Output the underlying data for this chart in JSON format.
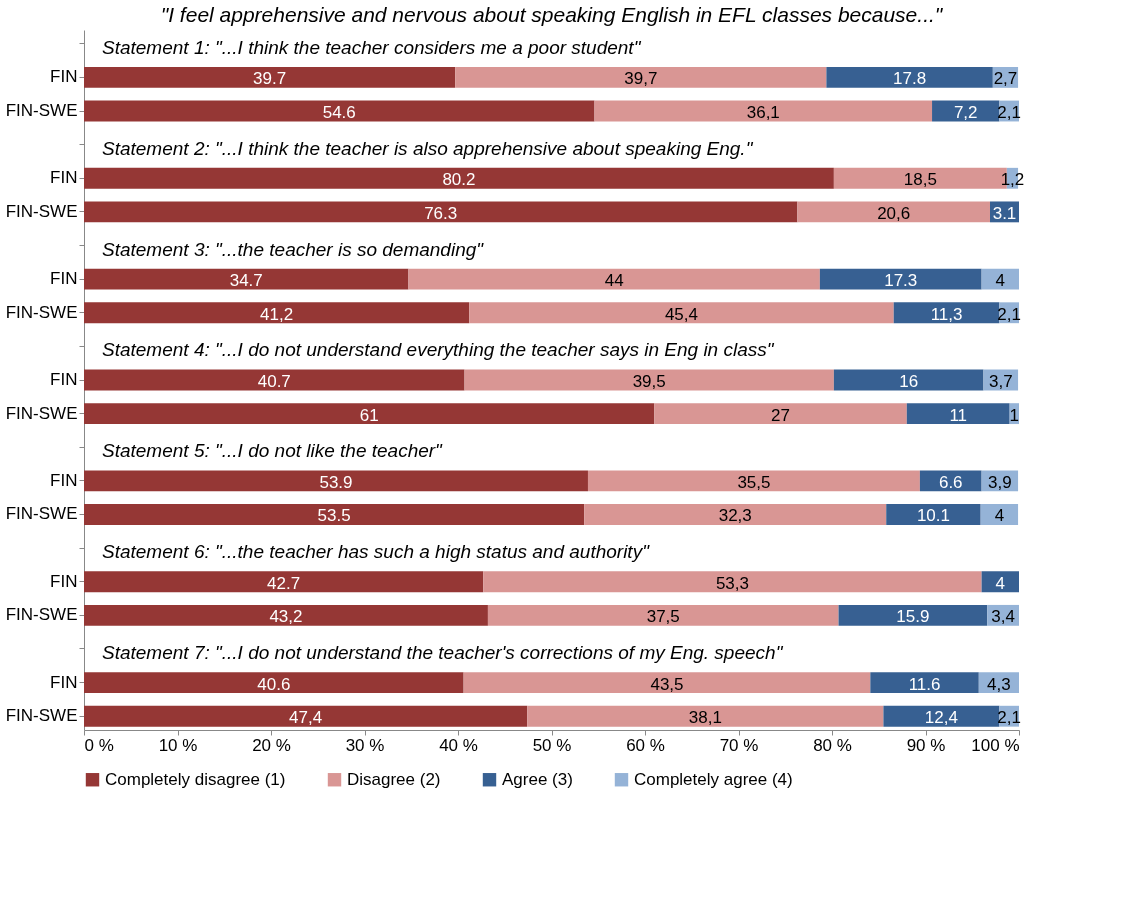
{
  "chart_data": {
    "type": "bar",
    "orientation": "horizontal",
    "stacked": true,
    "title": "\"I feel apprehensive and nervous about speaking English in EFL classes because...\"",
    "categories": [
      "FIN",
      "FIN-SWE",
      "FIN",
      "FIN-SWE",
      "FIN",
      "FIN-SWE",
      "FIN",
      "FIN-SWE",
      "FIN",
      "FIN-SWE",
      "FIN",
      "FIN-SWE",
      "FIN",
      "FIN-SWE"
    ],
    "series": [
      {
        "name": "Completely disagree (1)",
        "color": "#953735",
        "values": [
          39.7,
          54.6,
          80.2,
          76.3,
          34.7,
          41.2,
          40.7,
          61,
          53.9,
          53.5,
          42.7,
          43.2,
          40.6,
          47.4
        ],
        "value_labels": [
          "39.7",
          "54.6",
          "80.2",
          "76.3",
          "34.7",
          "41,2",
          "40.7",
          "61",
          "53.9",
          "53.5",
          "42.7",
          "43,2",
          "40.6",
          "47,4"
        ]
      },
      {
        "name": "Disagree (2)",
        "color": "#d99694",
        "values": [
          39.7,
          36.1,
          18.5,
          20.6,
          44,
          45.4,
          39.5,
          27,
          35.5,
          32.3,
          53.3,
          37.5,
          43.5,
          38.1
        ],
        "value_labels": [
          "39,7",
          "36,1",
          "18,5",
          "20,6",
          "44",
          "45,4",
          "39,5",
          "27",
          "35,5",
          "32,3",
          "53,3",
          "37,5",
          "43,5",
          "38,1"
        ]
      },
      {
        "name": "Agree (3)",
        "color": "#376092",
        "values": [
          17.8,
          7.2,
          null,
          3.1,
          17.3,
          11.3,
          16,
          11,
          6.6,
          10.1,
          4,
          15.9,
          11.6,
          12.4
        ],
        "value_labels": [
          "17.8",
          "7,2",
          null,
          "3.1",
          "17.3",
          "11,3",
          "16",
          "11",
          "6.6",
          "10.1",
          "4",
          "15.9",
          "11.6",
          "12,4"
        ]
      },
      {
        "name": "Completely agree (4)",
        "color": "#95b3d7",
        "values": [
          2.7,
          2.1,
          1.2,
          null,
          4,
          2.1,
          3.7,
          1,
          3.9,
          4,
          null,
          3.4,
          4.3,
          2.1
        ],
        "value_labels": [
          "2,7",
          "2,1",
          "1,2",
          null,
          "4",
          "2,1",
          "3,7",
          "1",
          "3,9",
          "4",
          null,
          "3,4",
          "4,3",
          "2,1"
        ]
      }
    ],
    "xlim": [
      0,
      100
    ],
    "xticks": [
      {
        "value": 0,
        "label": "0 %"
      },
      {
        "value": 10,
        "label": "10 %"
      },
      {
        "value": 20,
        "label": "20 %"
      },
      {
        "value": 30,
        "label": "30 %"
      },
      {
        "value": 40,
        "label": "40 %"
      },
      {
        "value": 50,
        "label": "50 %"
      },
      {
        "value": 60,
        "label": "60 %"
      },
      {
        "value": 70,
        "label": "70 %"
      },
      {
        "value": 80,
        "label": "80 %"
      },
      {
        "value": 90,
        "label": "90 %"
      },
      {
        "value": 100,
        "label": "100 %"
      }
    ],
    "annotations": [
      "Statement 1: \"...I think the teacher considers me a poor student\"",
      "Statement 2: \"...I think the teacher is also apprehensive about speaking Eng.\"",
      "Statement 3: \"...the teacher is so demanding\"",
      "Statement 4: \"...I do not understand everything the teacher says in Eng in class\"",
      "Statement 5: \"...I do not like the teacher\"",
      "Statement 6: \"...the teacher has such a high status and authority\"",
      "Statement 7: \"...I do not understand the teacher's corrections of my Eng. speech\""
    ],
    "grid": false,
    "legend": "bottom"
  }
}
